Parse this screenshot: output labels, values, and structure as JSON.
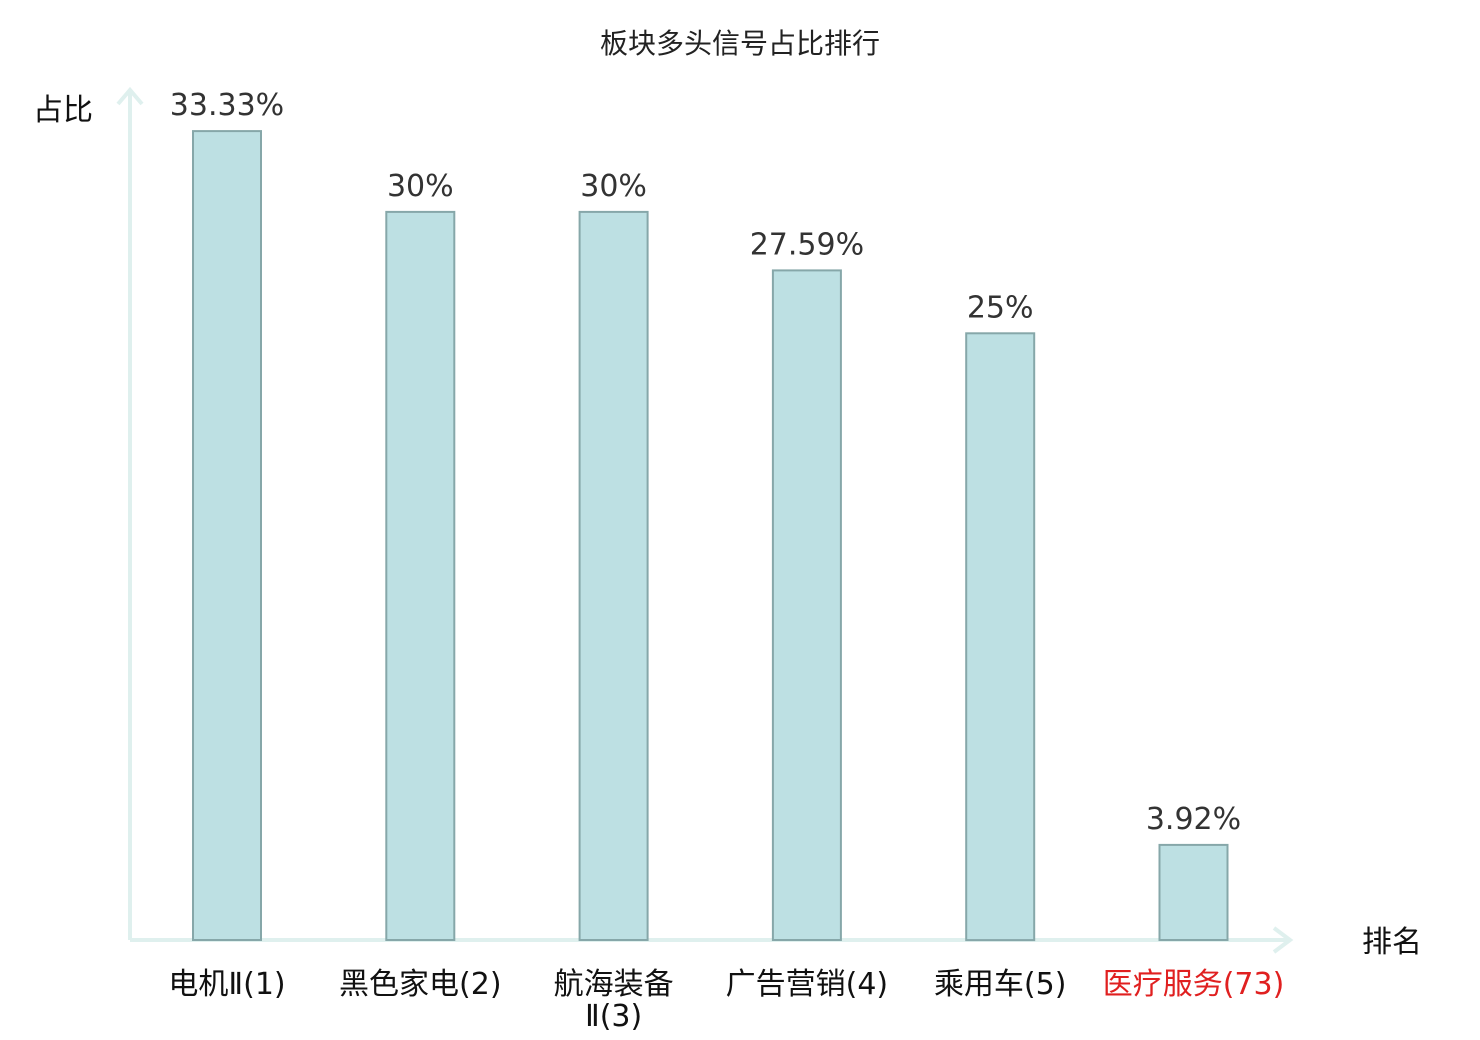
{
  "chart_data": {
    "type": "bar",
    "title": "板块多头信号占比排行",
    "ylabel": "占比",
    "xlabel": "排名",
    "categories": [
      [
        "电机Ⅱ(1)"
      ],
      [
        "黑色家电(2)"
      ],
      [
        "航海装备",
        "Ⅱ(3)"
      ],
      [
        "广告营销(4)"
      ],
      [
        "乘用车(5)"
      ],
      [
        "医疗服务(73)"
      ]
    ],
    "values": [
      33.33,
      30,
      30,
      27.59,
      25,
      3.92
    ],
    "value_labels": [
      "33.33%",
      "30%",
      "30%",
      "27.59%",
      "25%",
      "3.92%"
    ],
    "highlight_index": 5,
    "highlight_color": "#e02020",
    "bar_color": "#bde0e3",
    "bar_edge_color": "#86a7a9",
    "axis_color": "#dff0ee",
    "ylim": [
      0,
      35
    ],
    "grid": false,
    "legend": "none"
  }
}
